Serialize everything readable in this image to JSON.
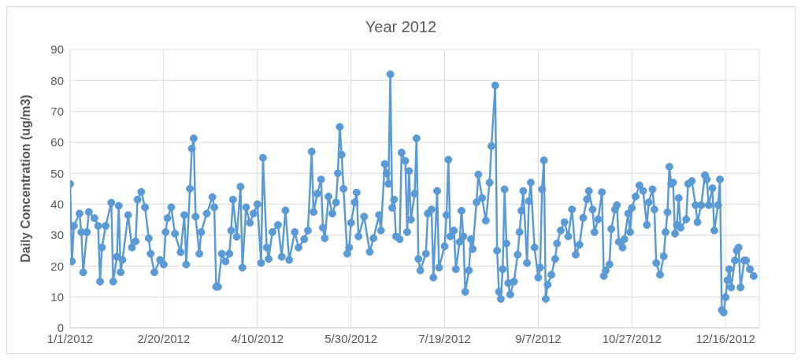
{
  "chart_data": {
    "type": "line",
    "title": "Year 2012",
    "ylabel": "Daily Concentration (ug/m3)",
    "xlim": [
      "2012-01-01",
      "2013-01-03"
    ],
    "xticks": [
      {
        "value": "2012-01-01",
        "label": "1/1/2012"
      },
      {
        "value": "2012-02-20",
        "label": "2/20/2012"
      },
      {
        "value": "2012-04-10",
        "label": "4/10/2012"
      },
      {
        "value": "2012-05-30",
        "label": "5/30/2012"
      },
      {
        "value": "2012-07-19",
        "label": "7/19/2012"
      },
      {
        "value": "2012-09-07",
        "label": "9/7/2012"
      },
      {
        "value": "2012-10-27",
        "label": "10/27/2012"
      },
      {
        "value": "2012-12-16",
        "label": "12/16/2012"
      }
    ],
    "ylim": [
      0,
      90
    ],
    "yticks": [
      0,
      10,
      20,
      30,
      40,
      50,
      60,
      70,
      80,
      90
    ],
    "grid": true,
    "marker": "circle",
    "line_style": "solid",
    "x": [
      "2012-01-01",
      "2012-01-02",
      "2012-01-03",
      "2012-01-06",
      "2012-01-07",
      "2012-01-08",
      "2012-01-10",
      "2012-01-11",
      "2012-01-14",
      "2012-01-16",
      "2012-01-17",
      "2012-01-18",
      "2012-01-20",
      "2012-01-23",
      "2012-01-24",
      "2012-01-26",
      "2012-01-27",
      "2012-01-28",
      "2012-01-29",
      "2012-02-01",
      "2012-02-03",
      "2012-02-05",
      "2012-02-06",
      "2012-02-08",
      "2012-02-10",
      "2012-02-12",
      "2012-02-13",
      "2012-02-15",
      "2012-02-18",
      "2012-02-20",
      "2012-02-21",
      "2012-02-22",
      "2012-02-24",
      "2012-02-26",
      "2012-02-29",
      "2012-03-02",
      "2012-03-03",
      "2012-03-05",
      "2012-03-06",
      "2012-03-07",
      "2012-03-08",
      "2012-03-10",
      "2012-03-11",
      "2012-03-14",
      "2012-03-17",
      "2012-03-18",
      "2012-03-19",
      "2012-03-20",
      "2012-03-22",
      "2012-03-24",
      "2012-03-26",
      "2012-03-27",
      "2012-03-28",
      "2012-03-30",
      "2012-04-01",
      "2012-04-02",
      "2012-04-04",
      "2012-04-06",
      "2012-04-08",
      "2012-04-10",
      "2012-04-12",
      "2012-04-13",
      "2012-04-15",
      "2012-04-16",
      "2012-04-18",
      "2012-04-21",
      "2012-04-23",
      "2012-04-25",
      "2012-04-27",
      "2012-04-30",
      "2012-05-02",
      "2012-05-05",
      "2012-05-07",
      "2012-05-09",
      "2012-05-10",
      "2012-05-12",
      "2012-05-14",
      "2012-05-15",
      "2012-05-16",
      "2012-05-18",
      "2012-05-20",
      "2012-05-22",
      "2012-05-23",
      "2012-05-24",
      "2012-05-25",
      "2012-05-26",
      "2012-05-28",
      "2012-05-29",
      "2012-05-30",
      "2012-06-01",
      "2012-06-02",
      "2012-06-03",
      "2012-06-06",
      "2012-06-09",
      "2012-06-11",
      "2012-06-14",
      "2012-06-15",
      "2012-06-17",
      "2012-06-18",
      "2012-06-19",
      "2012-06-20",
      "2012-06-21",
      "2012-06-22",
      "2012-06-23",
      "2012-06-25",
      "2012-06-26",
      "2012-06-28",
      "2012-06-29",
      "2012-06-30",
      "2012-07-01",
      "2012-07-03",
      "2012-07-04",
      "2012-07-05",
      "2012-07-06",
      "2012-07-09",
      "2012-07-10",
      "2012-07-12",
      "2012-07-13",
      "2012-07-15",
      "2012-07-16",
      "2012-07-19",
      "2012-07-20",
      "2012-07-21",
      "2012-07-22",
      "2012-07-24",
      "2012-07-25",
      "2012-07-27",
      "2012-07-28",
      "2012-07-29",
      "2012-07-30",
      "2012-08-01",
      "2012-08-02",
      "2012-08-03",
      "2012-08-05",
      "2012-08-06",
      "2012-08-08",
      "2012-08-10",
      "2012-08-12",
      "2012-08-13",
      "2012-08-15",
      "2012-08-16",
      "2012-08-17",
      "2012-08-18",
      "2012-08-19",
      "2012-08-20",
      "2012-08-21",
      "2012-08-22",
      "2012-08-23",
      "2012-08-25",
      "2012-08-27",
      "2012-08-28",
      "2012-08-29",
      "2012-08-30",
      "2012-09-01",
      "2012-09-02",
      "2012-09-03",
      "2012-09-05",
      "2012-09-07",
      "2012-09-08",
      "2012-09-09",
      "2012-09-10",
      "2012-09-11",
      "2012-09-12",
      "2012-09-14",
      "2012-09-16",
      "2012-09-17",
      "2012-09-19",
      "2012-09-21",
      "2012-09-23",
      "2012-09-25",
      "2012-09-27",
      "2012-09-29",
      "2012-10-01",
      "2012-10-03",
      "2012-10-04",
      "2012-10-06",
      "2012-10-07",
      "2012-10-09",
      "2012-10-11",
      "2012-10-12",
      "2012-10-13",
      "2012-10-15",
      "2012-10-16",
      "2012-10-18",
      "2012-10-19",
      "2012-10-20",
      "2012-10-22",
      "2012-10-23",
      "2012-10-25",
      "2012-10-26",
      "2012-10-27",
      "2012-10-29",
      "2012-10-31",
      "2012-11-02",
      "2012-11-04",
      "2012-11-05",
      "2012-11-07",
      "2012-11-08",
      "2012-11-09",
      "2012-11-11",
      "2012-11-13",
      "2012-11-14",
      "2012-11-15",
      "2012-11-16",
      "2012-11-17",
      "2012-11-18",
      "2012-11-19",
      "2012-11-20",
      "2012-11-21",
      "2012-11-22",
      "2012-11-25",
      "2012-11-26",
      "2012-11-28",
      "2012-11-30",
      "2012-12-01",
      "2012-12-03",
      "2012-12-05",
      "2012-12-06",
      "2012-12-07",
      "2012-12-09",
      "2012-12-10",
      "2012-12-12",
      "2012-12-13",
      "2012-12-14",
      "2012-12-15",
      "2012-12-16",
      "2012-12-17",
      "2012-12-18",
      "2012-12-19",
      "2012-12-21",
      "2012-12-22",
      "2012-12-23",
      "2012-12-24",
      "2012-12-26",
      "2012-12-27",
      "2012-12-29",
      "2012-12-31"
    ],
    "series": [
      {
        "color": "#5b9bd5",
        "values": [
          46.6,
          21.5,
          33,
          37,
          31,
          18,
          31,
          37.5,
          35.5,
          33,
          15,
          26,
          33,
          40.5,
          15,
          23,
          39.5,
          18,
          22,
          36.5,
          26,
          28,
          41.5,
          44,
          39,
          29,
          24,
          18,
          22,
          20.5,
          31,
          35.5,
          39,
          30.5,
          24.5,
          36.5,
          20.5,
          45,
          58,
          61.3,
          36,
          24,
          31,
          37,
          42.3,
          39,
          13.3,
          13.3,
          24,
          21.5,
          24,
          31.5,
          41.5,
          29.5,
          45.7,
          19.5,
          39,
          34,
          37,
          40,
          21,
          55,
          26,
          22.3,
          31,
          33.3,
          23,
          38,
          22,
          31,
          26,
          28.7,
          31.5,
          57,
          37.5,
          43.4,
          48,
          32.4,
          29,
          42.5,
          37,
          40.6,
          50,
          65,
          56,
          45,
          24,
          26,
          34,
          40.6,
          43.8,
          29.6,
          36,
          24.6,
          29,
          36.5,
          31.5,
          53,
          50,
          46.6,
          82,
          38.8,
          41.5,
          29.6,
          28.7,
          56.7,
          54,
          31,
          50.7,
          35,
          43.4,
          61.3,
          22.3,
          18.6,
          24,
          37,
          38.3,
          16.3,
          44.3,
          19.5,
          26.4,
          36.5,
          54.4,
          29.6,
          31.5,
          19,
          27.8,
          37.9,
          29.6,
          11.7,
          18.6,
          28.7,
          25.5,
          40.6,
          49.6,
          42,
          34.7,
          47,
          58.8,
          78.4,
          25,
          11.7,
          9.4,
          19,
          44.8,
          27.3,
          14.5,
          10.8,
          15,
          23.7,
          31,
          37.9,
          44.3,
          21,
          41,
          47,
          26,
          16.3,
          19.5,
          44.8,
          54.2,
          9.4,
          14,
          17.2,
          22.3,
          27.3,
          31.5,
          34.2,
          29.6,
          38.3,
          23.7,
          26.9,
          35.6,
          41.6,
          44.3,
          38.3,
          31,
          35.1,
          43.9,
          16.8,
          18.6,
          20.5,
          32,
          38.3,
          39.7,
          27.8,
          26,
          28.7,
          37,
          31,
          38.8,
          42.5,
          46.1,
          44.3,
          33.3,
          40.6,
          44.8,
          38.3,
          21,
          17.2,
          23.2,
          31,
          37.4,
          52.1,
          46.6,
          47,
          30.5,
          33.3,
          42,
          32.4,
          35.1,
          46.6,
          47.5,
          39.7,
          34.2,
          39.7,
          49.4,
          48,
          39.7,
          45.2,
          31.5,
          39.7,
          48,
          5.8,
          5,
          9.9,
          15.4,
          19,
          13.1,
          21.8,
          25,
          26,
          13.1,
          21.8,
          21.8,
          19,
          16.8
        ]
      }
    ]
  }
}
